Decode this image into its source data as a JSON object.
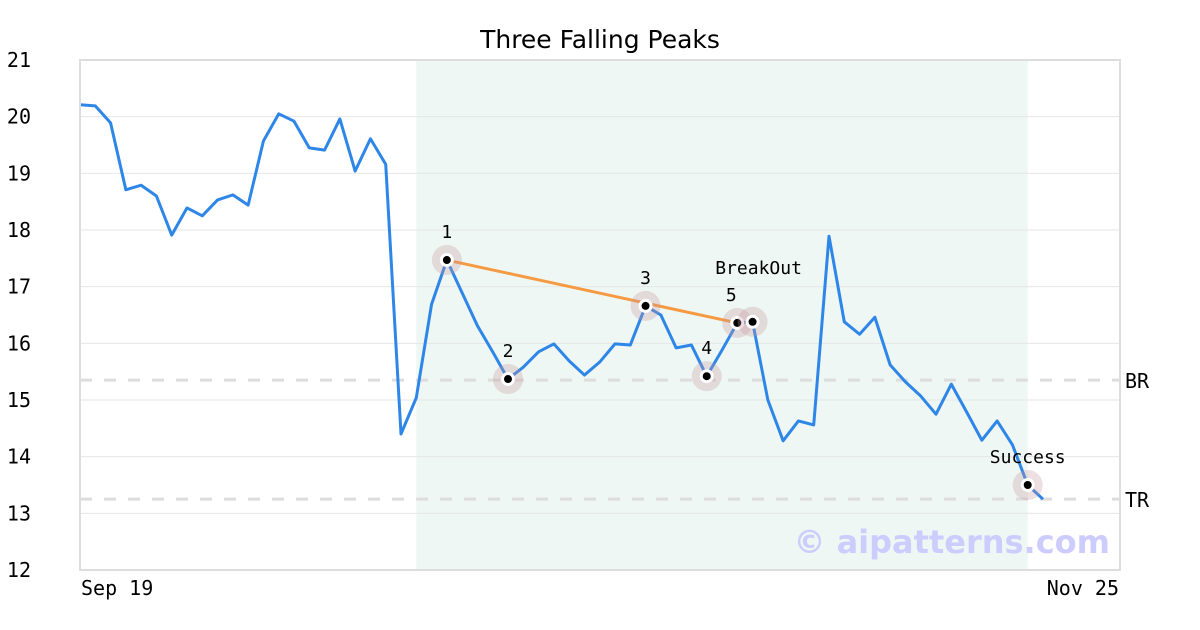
{
  "chart_data": {
    "type": "line",
    "title": "Three Falling Peaks",
    "xlabel": "",
    "ylabel": "",
    "ylim": [
      12,
      21
    ],
    "yticks": [
      12,
      13,
      14,
      15,
      16,
      17,
      18,
      19,
      20,
      21
    ],
    "xtick_labels": [
      "Sep 19",
      "Nov 25"
    ],
    "grid": true,
    "series": [
      {
        "color": "#2e86e8",
        "values": [
          20.21,
          20.19,
          19.89,
          18.71,
          18.79,
          18.6,
          17.91,
          18.39,
          18.25,
          18.53,
          18.62,
          18.44,
          19.57,
          20.05,
          19.92,
          19.45,
          19.41,
          19.96,
          19.04,
          19.61,
          19.16,
          14.4,
          15.04,
          16.69,
          17.47,
          16.89,
          16.31,
          15.85,
          15.37,
          15.58,
          15.85,
          15.99,
          15.69,
          15.44,
          15.67,
          15.99,
          15.97,
          16.66,
          16.5,
          15.92,
          15.97,
          15.42,
          15.88,
          16.36,
          16.38,
          15.0,
          14.28,
          14.63,
          14.56,
          17.89,
          16.38,
          16.16,
          16.46,
          15.62,
          15.32,
          15.07,
          14.75,
          15.28,
          14.79,
          14.29,
          14.63,
          14.21,
          13.5,
          13.25
        ]
      }
    ],
    "highlight_range": {
      "start_index": 22,
      "end_index": 62,
      "color": "#eef7f3"
    },
    "markers": [
      {
        "label": "1",
        "index": 24
      },
      {
        "label": "2",
        "index": 28
      },
      {
        "label": "3",
        "index": 37
      },
      {
        "label": "4",
        "index": 41
      },
      {
        "label": "5",
        "index": 43
      },
      {
        "label": "BreakOut",
        "index": 44
      },
      {
        "label": "Success",
        "index": 62
      }
    ],
    "trendline": {
      "from_index": 24,
      "to_index": 43,
      "color": "#f59a42"
    },
    "levels": [
      {
        "label": "BR",
        "value": 15.35
      },
      {
        "label": "TR",
        "value": 13.25
      }
    ],
    "watermark": "© aipatterns.com"
  }
}
